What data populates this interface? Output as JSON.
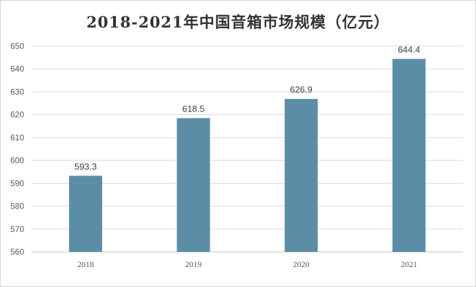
{
  "chart_data": {
    "type": "bar",
    "title": "2018-2021年中国音箱市场规模（亿元）",
    "xlabel": "",
    "ylabel": "",
    "categories": [
      "2018",
      "2019",
      "2020",
      "2021"
    ],
    "values": [
      593.3,
      618.5,
      626.9,
      644.4
    ],
    "data_labels": [
      "593.3",
      "618.5",
      "626.9",
      "644.4"
    ],
    "ylim": [
      560,
      650
    ],
    "yticks": [
      "560",
      "570",
      "580",
      "590",
      "600",
      "610",
      "620",
      "630",
      "640",
      "650"
    ],
    "grid": true,
    "legend": "none"
  },
  "colors": {
    "bar": "#5b8ea6",
    "grid": "#d9d9d9"
  }
}
